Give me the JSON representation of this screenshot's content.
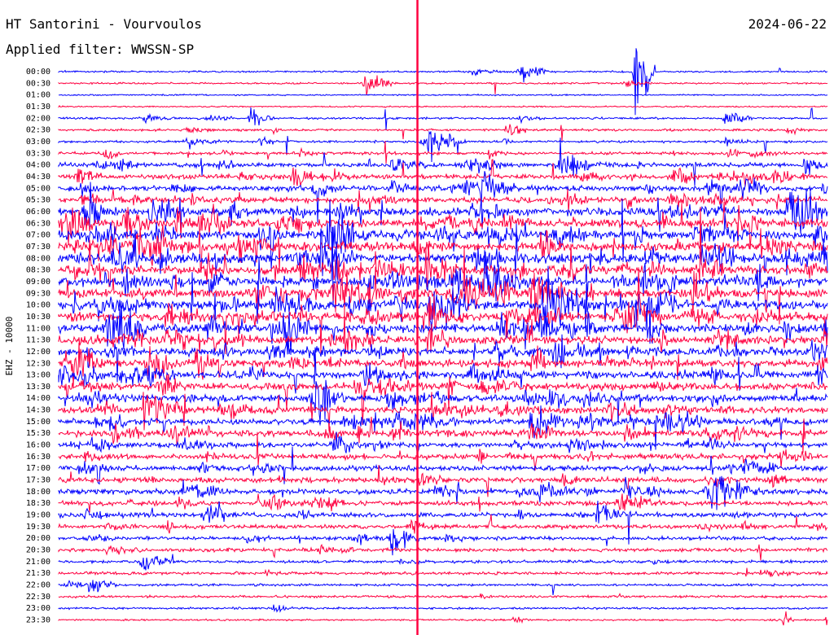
{
  "header": {
    "station": "HT Santorini - Vourvoulos",
    "date": "2024-06-22",
    "filter": "Applied filter: WWSSN-SP"
  },
  "chart_data": {
    "type": "line",
    "title": "HT Santorini - Vourvoulos",
    "subtitle": "Applied filter: WWSSN-SP",
    "ylabel": "EHZ - 10000",
    "date": "2024-06-22",
    "row_labels": [
      "00:00",
      "00:30",
      "01:00",
      "01:30",
      "02:00",
      "02:30",
      "03:00",
      "03:30",
      "04:00",
      "04:30",
      "05:00",
      "05:30",
      "06:00",
      "06:30",
      "07:00",
      "07:30",
      "08:00",
      "08:30",
      "09:00",
      "09:30",
      "10:00",
      "10:30",
      "11:00",
      "11:30",
      "12:00",
      "12:30",
      "13:00",
      "13:30",
      "14:00",
      "14:30",
      "15:00",
      "15:30",
      "16:00",
      "16:30",
      "17:00",
      "17:30",
      "18:00",
      "18:30",
      "19:00",
      "19:30",
      "20:00",
      "20:30",
      "21:00",
      "21:30",
      "22:00",
      "22:30",
      "23:00",
      "23:30"
    ],
    "row_minutes": 30,
    "series_colors": [
      "#0000ff",
      "#ff0040"
    ],
    "background_noise": [
      0.6,
      0.6,
      0.5,
      0.5,
      0.7,
      0.8,
      0.8,
      1.0,
      1.5,
      1.6,
      1.8,
      2.0,
      2.6,
      2.8,
      2.8,
      2.8,
      3.0,
      3.0,
      3.0,
      3.0,
      3.0,
      3.0,
      2.8,
      2.8,
      2.6,
      2.6,
      2.4,
      2.4,
      2.4,
      2.4,
      2.2,
      2.2,
      1.8,
      1.8,
      1.8,
      1.8,
      1.8,
      1.6,
      1.6,
      1.4,
      1.2,
      1.2,
      1.0,
      1.0,
      0.8,
      0.8,
      0.7,
      0.6
    ],
    "activity": [
      0.05,
      0.05,
      0.02,
      0.02,
      0.15,
      0.15,
      0.25,
      0.3,
      0.45,
      0.5,
      0.55,
      0.6,
      0.75,
      0.8,
      0.85,
      0.85,
      0.9,
      0.9,
      0.9,
      0.9,
      0.9,
      0.85,
      0.8,
      0.8,
      0.75,
      0.7,
      0.65,
      0.6,
      0.6,
      0.55,
      0.55,
      0.5,
      0.45,
      0.4,
      0.4,
      0.35,
      0.45,
      0.4,
      0.35,
      0.25,
      0.2,
      0.15,
      0.1,
      0.08,
      0.06,
      0.05,
      0.04,
      0.03
    ],
    "events": [
      {
        "row": 0,
        "minute": 18.0,
        "amplitude": 9,
        "duration": 0.8
      },
      {
        "row": 0,
        "minute": 22.5,
        "amplitude": 55,
        "duration": 0.6
      },
      {
        "row": 1,
        "minute": 12.0,
        "amplitude": 12,
        "duration": 0.8
      },
      {
        "row": 4,
        "minute": 7.5,
        "amplitude": 8,
        "duration": 0.7
      },
      {
        "row": 4,
        "minute": 26.0,
        "amplitude": 10,
        "duration": 0.8
      },
      {
        "row": 5,
        "minute": 17.5,
        "amplitude": 8,
        "duration": 0.6
      },
      {
        "row": 6,
        "minute": 14.5,
        "amplitude": 12,
        "duration": 0.8
      },
      {
        "row": 6,
        "minute": 30.5,
        "amplitude": 10,
        "duration": 0.6
      },
      {
        "row": 8,
        "minute": 19.5,
        "amplitude": 14,
        "duration": 0.9
      },
      {
        "row": 10,
        "minute": 16.5,
        "amplitude": 14,
        "duration": 1.0
      },
      {
        "row": 12,
        "minute": 1.0,
        "amplitude": 14,
        "duration": 1.0
      },
      {
        "row": 12,
        "minute": 28.5,
        "amplitude": 18,
        "duration": 1.0
      },
      {
        "row": 14,
        "minute": 10.5,
        "amplitude": 18,
        "duration": 1.0
      },
      {
        "row": 16,
        "minute": 29.8,
        "amplitude": 16,
        "duration": 0.8
      },
      {
        "row": 18,
        "minute": 16.5,
        "amplitude": 16,
        "duration": 1.0
      },
      {
        "row": 20,
        "minute": 14.5,
        "amplitude": 18,
        "duration": 1.0
      },
      {
        "row": 20,
        "minute": 19.0,
        "amplitude": 16,
        "duration": 1.2
      },
      {
        "row": 22,
        "minute": 2.0,
        "amplitude": 16,
        "duration": 1.2
      },
      {
        "row": 26,
        "minute": 1.0,
        "amplitude": 10,
        "duration": 0.6
      },
      {
        "row": 28,
        "minute": 10.0,
        "amplitude": 14,
        "duration": 1.0
      },
      {
        "row": 30,
        "minute": 18.5,
        "amplitude": 14,
        "duration": 1.0
      },
      {
        "row": 30,
        "minute": 23.5,
        "amplitude": 14,
        "duration": 0.8
      },
      {
        "row": 34,
        "minute": 30.5,
        "amplitude": 12,
        "duration": 0.8
      },
      {
        "row": 36,
        "minute": 25.5,
        "amplitude": 18,
        "duration": 1.4
      },
      {
        "row": 38,
        "minute": 21.0,
        "amplitude": 10,
        "duration": 1.0
      },
      {
        "row": 40,
        "minute": 13.0,
        "amplitude": 14,
        "duration": 0.8
      },
      {
        "row": 42,
        "minute": 3.3,
        "amplitude": 10,
        "duration": 0.8
      },
      {
        "row": 44,
        "minute": 1.2,
        "amplitude": 8,
        "duration": 0.8
      },
      {
        "row": 47,
        "minute": 30.0,
        "amplitude": 10,
        "duration": 0.5
      },
      {
        "row": 47,
        "minute": 28.3,
        "amplitude": 8,
        "duration": 0.3
      }
    ],
    "vertical_marker": {
      "minute": 14.0,
      "color": "#ff0040"
    }
  }
}
